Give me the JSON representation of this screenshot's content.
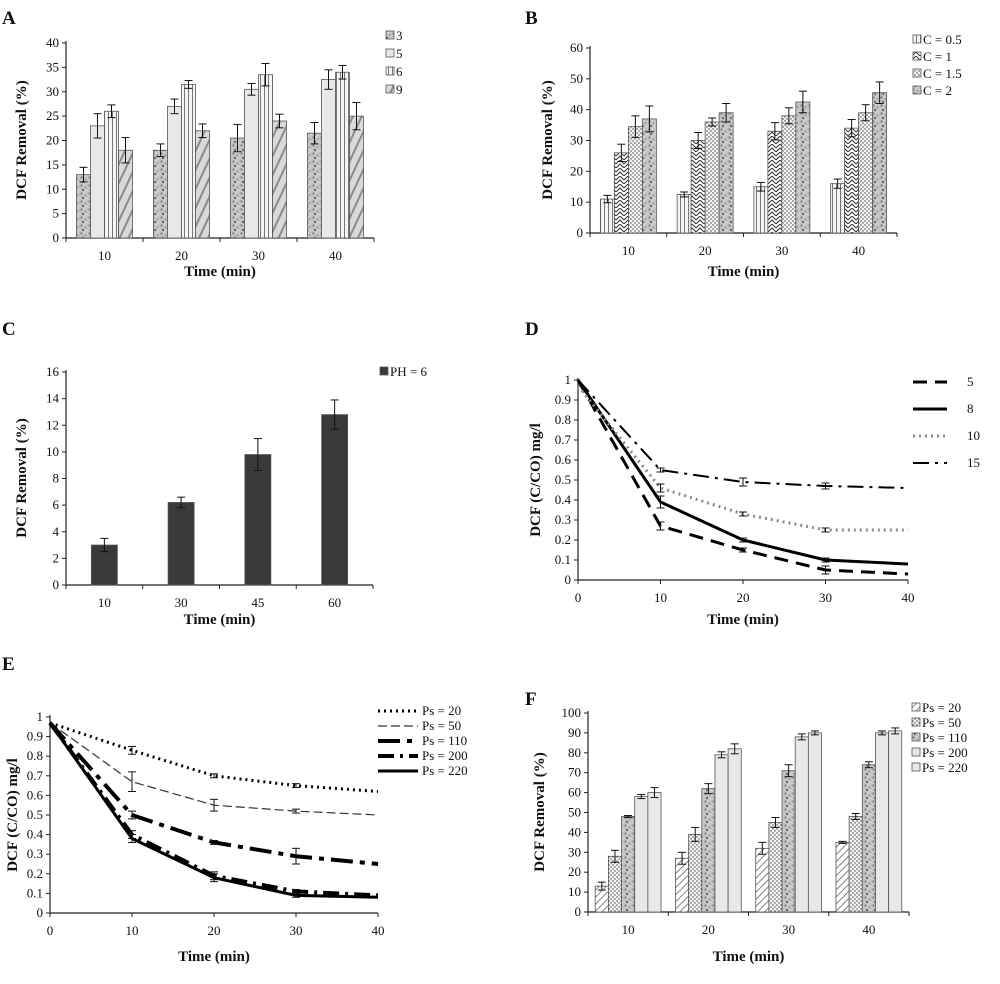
{
  "chart_data": [
    {
      "panel": "A",
      "type": "bar",
      "xlabel": "Time (min)",
      "ylabel": "DCF Removal (%)",
      "ylim": [
        0,
        40
      ],
      "yticks": [
        0,
        5,
        10,
        15,
        20,
        25,
        30,
        35,
        40
      ],
      "categories": [
        "10",
        "20",
        "30",
        "40"
      ],
      "legend": "right",
      "series": [
        {
          "name": "3",
          "values": [
            13,
            18,
            20.5,
            21.5
          ],
          "errors": [
            1.5,
            1.3,
            2.8,
            2.2
          ],
          "color": "#b9b9b9",
          "pattern": "speckle"
        },
        {
          "name": "5",
          "values": [
            23,
            27,
            30.5,
            32.5
          ],
          "errors": [
            2.5,
            1.5,
            1.2,
            2
          ],
          "color": "#e6e6e6",
          "pattern": "plain"
        },
        {
          "name": "6",
          "values": [
            26,
            31.5,
            33.5,
            34
          ],
          "errors": [
            1.3,
            0.8,
            2.3,
            1.4
          ],
          "color": "#d6d6d6",
          "pattern": "vertical"
        },
        {
          "name": "9",
          "values": [
            18,
            22,
            24,
            25
          ],
          "errors": [
            2.6,
            1.4,
            1.4,
            2.8
          ],
          "color": "#cfcfcf",
          "pattern": "diagonal"
        }
      ]
    },
    {
      "panel": "B",
      "type": "bar",
      "xlabel": "Time (min)",
      "ylabel": "DCF Removal (%)",
      "ylim": [
        0,
        60
      ],
      "yticks": [
        0,
        10,
        20,
        30,
        40,
        50,
        60
      ],
      "categories": [
        "10",
        "20",
        "30",
        "40"
      ],
      "legend": "right",
      "series": [
        {
          "name": "C = 0.5",
          "values": [
            11,
            12.5,
            15,
            16
          ],
          "errors": [
            1.2,
            0.8,
            1.4,
            1.5
          ],
          "color": "#ffffff",
          "pattern": "vertical"
        },
        {
          "name": "C = 1",
          "values": [
            26,
            30,
            33,
            34
          ],
          "errors": [
            2.8,
            2.6,
            2.8,
            2.8
          ],
          "color": "#ffffff",
          "pattern": "zigzag"
        },
        {
          "name": "C = 1.5",
          "values": [
            34.5,
            36,
            38,
            39
          ],
          "errors": [
            3.5,
            1.3,
            2.6,
            2.6
          ],
          "color": "#e0e0e0",
          "pattern": "dots"
        },
        {
          "name": "C = 2",
          "values": [
            37,
            39,
            42.5,
            45.5
          ],
          "errors": [
            4.2,
            3,
            3.5,
            3.5
          ],
          "color": "#bdbdbd",
          "pattern": "speckle"
        }
      ]
    },
    {
      "panel": "C",
      "type": "bar",
      "xlabel": "Time (min)",
      "ylabel": "DCF Removal (%)",
      "ylim": [
        0,
        16
      ],
      "yticks": [
        0,
        2,
        4,
        6,
        8,
        10,
        12,
        14,
        16
      ],
      "categories": [
        "10",
        "30",
        "45",
        "60"
      ],
      "legend": "top-right",
      "series": [
        {
          "name": "PH = 6",
          "values": [
            3,
            6.2,
            9.8,
            12.8
          ],
          "errors": [
            0.5,
            0.4,
            1.2,
            1.1
          ],
          "color": "#3a3a3a",
          "pattern": "solid"
        }
      ]
    },
    {
      "panel": "D",
      "type": "line",
      "xlabel": "Time (min)",
      "ylabel": "DCF (C/CO) mg/l",
      "xlim": [
        0,
        40
      ],
      "xticks": [
        0,
        10,
        20,
        30,
        40
      ],
      "ylim": [
        0,
        1
      ],
      "yticks": [
        0,
        0.1,
        0.2,
        0.3,
        0.4,
        0.5,
        0.6,
        0.7,
        0.8,
        0.9,
        1
      ],
      "ytick_labels": [
        "0",
        "0.1",
        "0.2",
        "0.3",
        "0.4",
        "0.5",
        "0.6",
        "0.7",
        "0.8",
        "0.9",
        "1"
      ],
      "legend": "right",
      "series": [
        {
          "name": "5",
          "x": [
            0,
            10,
            20,
            30,
            40
          ],
          "y": [
            1,
            0.27,
            0.15,
            0.05,
            0.03
          ],
          "errors": [
            0,
            0.02,
            0.01,
            0.02,
            0
          ],
          "style": "dashed",
          "color": "#000000",
          "width": 3
        },
        {
          "name": "8",
          "x": [
            0,
            10,
            20,
            30,
            40
          ],
          "y": [
            1,
            0.39,
            0.2,
            0.1,
            0.08
          ],
          "errors": [
            0,
            0.03,
            0.01,
            0.01,
            0
          ],
          "style": "solid",
          "color": "#000000",
          "width": 3
        },
        {
          "name": "10",
          "x": [
            0,
            10,
            20,
            30,
            40
          ],
          "y": [
            0.97,
            0.46,
            0.33,
            0.25,
            0.25
          ],
          "errors": [
            0,
            0.02,
            0.01,
            0.01,
            0
          ],
          "style": "dotted",
          "color": "#8a8a8a",
          "width": 3
        },
        {
          "name": "15",
          "x": [
            0,
            10,
            20,
            30,
            40
          ],
          "y": [
            1,
            0.55,
            0.49,
            0.47,
            0.46
          ],
          "errors": [
            0,
            0.01,
            0.02,
            0.015,
            0
          ],
          "style": "dashdot",
          "color": "#000000",
          "width": 2
        }
      ]
    },
    {
      "panel": "E",
      "type": "line",
      "xlabel": "Time (min)",
      "ylabel": "DCF (C/CO) mg/l",
      "xlim": [
        0,
        40
      ],
      "xticks": [
        0,
        10,
        20,
        30,
        40
      ],
      "ylim": [
        0,
        1
      ],
      "yticks": [
        0,
        0.1,
        0.2,
        0.3,
        0.4,
        0.5,
        0.6,
        0.7,
        0.8,
        0.9,
        1
      ],
      "ytick_labels": [
        "0",
        "0.1",
        "0.2",
        "0.3",
        "0.4",
        "0.5",
        "0.6",
        "0.7",
        "0.8",
        "0.9",
        "1"
      ],
      "legend": "right",
      "series": [
        {
          "name": "Ps = 20",
          "x": [
            0,
            10,
            20,
            30,
            40
          ],
          "y": [
            0.97,
            0.83,
            0.7,
            0.65,
            0.62
          ],
          "errors": [
            0,
            0.02,
            0.01,
            0.01,
            0
          ],
          "style": "dotted",
          "color": "#000000",
          "width": 3
        },
        {
          "name": "Ps = 50",
          "x": [
            0,
            10,
            20,
            30,
            40
          ],
          "y": [
            0.97,
            0.67,
            0.55,
            0.52,
            0.5
          ],
          "errors": [
            0,
            0.05,
            0.03,
            0.01,
            0
          ],
          "style": "dashed-thin",
          "color": "#333333",
          "width": 1.2
        },
        {
          "name": "Ps = 110",
          "x": [
            0,
            10,
            20,
            30,
            40
          ],
          "y": [
            0.97,
            0.5,
            0.36,
            0.29,
            0.25
          ],
          "errors": [
            0,
            0.02,
            0.01,
            0.04,
            0
          ],
          "style": "longdashdot",
          "color": "#000000",
          "width": 4
        },
        {
          "name": "Ps = 200",
          "x": [
            0,
            10,
            20,
            30,
            40
          ],
          "y": [
            0.97,
            0.4,
            0.19,
            0.11,
            0.09
          ],
          "errors": [
            0,
            0.02,
            0.02,
            0.01,
            0
          ],
          "style": "dashdot",
          "color": "#000000",
          "width": 4
        },
        {
          "name": "Ps = 220",
          "x": [
            0,
            10,
            20,
            30,
            40
          ],
          "y": [
            0.97,
            0.38,
            0.18,
            0.09,
            0.08
          ],
          "errors": [
            0,
            0.02,
            0.02,
            0.01,
            0
          ],
          "style": "solid",
          "color": "#000000",
          "width": 3
        }
      ]
    },
    {
      "panel": "F",
      "type": "bar",
      "xlabel": "Time (min)",
      "ylabel": "DCF Removal (%)",
      "ylim": [
        0,
        100
      ],
      "yticks": [
        0,
        10,
        20,
        30,
        40,
        50,
        60,
        70,
        80,
        90,
        100
      ],
      "categories": [
        "10",
        "20",
        "30",
        "40"
      ],
      "legend": "right",
      "series": [
        {
          "name": "Ps = 20",
          "values": [
            13,
            27,
            32,
            35
          ],
          "errors": [
            2,
            3,
            3,
            0.5
          ],
          "color": "#ffffff",
          "pattern": "diagonal-light"
        },
        {
          "name": "Ps = 50",
          "values": [
            28,
            39,
            45,
            48
          ],
          "errors": [
            3,
            3.5,
            2.5,
            1.5
          ],
          "color": "#ffffff",
          "pattern": "dots"
        },
        {
          "name": "Ps = 110",
          "values": [
            48,
            62,
            71,
            74
          ],
          "errors": [
            0.5,
            2.5,
            3,
            1.5
          ],
          "color": "#bdbdbd",
          "pattern": "speckle"
        },
        {
          "name": "Ps = 200",
          "values": [
            58,
            79,
            88,
            90
          ],
          "errors": [
            1,
            1.5,
            1.5,
            1
          ],
          "color": "#e2e2e2",
          "pattern": "plain"
        },
        {
          "name": "Ps = 220",
          "values": [
            60,
            82,
            90,
            91
          ],
          "errors": [
            2.5,
            2.5,
            1,
            1.5
          ],
          "color": "#efefef",
          "pattern": "plain"
        }
      ]
    }
  ]
}
